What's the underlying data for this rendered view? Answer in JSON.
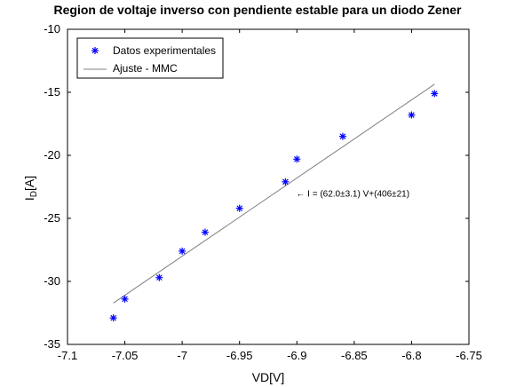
{
  "chart_data": {
    "type": "scatter",
    "title": "Region  de voltaje inverso con pendiente estable para un diodo Zener",
    "xlabel": "VD[V]",
    "ylabel_main": "I",
    "ylabel_sub": "D",
    "ylabel_suffix": "[A]",
    "xlim": [
      -7.1,
      -6.75
    ],
    "ylim": [
      -35,
      -10
    ],
    "xticks": [
      -7.1,
      -7.05,
      -7.0,
      -6.95,
      -6.9,
      -6.85,
      -6.8,
      -6.75
    ],
    "xtick_labels": [
      "-7.1",
      "-7.05",
      "-7",
      "-6.95",
      "-6.9",
      "-6.85",
      "-6.8",
      "-6.75"
    ],
    "yticks": [
      -35,
      -30,
      -25,
      -20,
      -15,
      -10
    ],
    "ytick_labels": [
      "-35",
      "-30",
      "-25",
      "-20",
      "-15",
      "-10"
    ],
    "grid": false,
    "legend_position": "top-left",
    "series": [
      {
        "name": "Datos experimentales",
        "marker": "asterisk",
        "color": "#0000ff",
        "x": [
          -7.06,
          -7.05,
          -7.02,
          -7.0,
          -6.98,
          -6.95,
          -6.91,
          -6.9,
          -6.86,
          -6.8,
          -6.78
        ],
        "y": [
          -32.9,
          -31.4,
          -29.7,
          -27.6,
          -26.1,
          -24.2,
          -22.1,
          -20.3,
          -18.5,
          -16.8,
          -15.1
        ]
      },
      {
        "name": "Ajuste - MMC",
        "style": "line",
        "color": "#808080",
        "slope": 62.0,
        "intercept": 406,
        "x_range": [
          -7.06,
          -6.78
        ]
      }
    ],
    "annotation": {
      "text": "← I = (62.0±3.1) V+(406±21)",
      "x": -6.91,
      "y": -23.0
    }
  }
}
